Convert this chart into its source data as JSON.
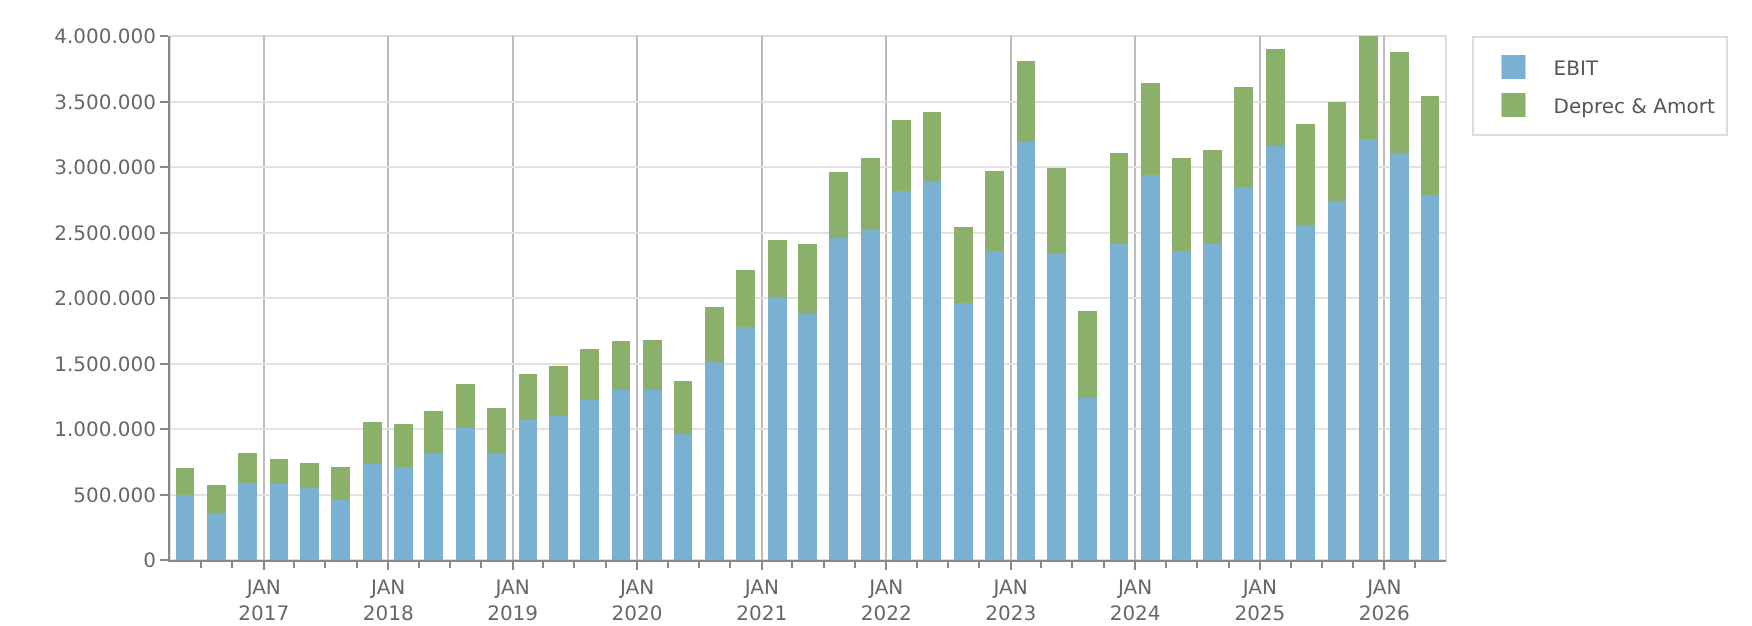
{
  "chart_data": {
    "type": "bar",
    "stacked": true,
    "x": [
      "2016-05-15",
      "2016-08-15",
      "2016-11-15",
      "2017-02-15",
      "2017-05-15",
      "2017-08-15",
      "2017-11-15",
      "2018-02-15",
      "2018-05-15",
      "2018-08-15",
      "2018-11-15",
      "2019-02-15",
      "2019-05-15",
      "2019-08-15",
      "2019-11-15",
      "2020-02-15",
      "2020-05-15",
      "2020-08-15",
      "2020-11-15",
      "2021-02-15",
      "2021-05-15",
      "2021-08-15",
      "2021-11-15",
      "2022-02-15",
      "2022-05-15",
      "2022-08-15",
      "2022-11-15",
      "2023-02-15",
      "2023-05-15",
      "2023-08-15",
      "2023-11-15",
      "2024-02-15",
      "2024-05-15",
      "2024-08-15",
      "2024-11-15",
      "2025-02-15",
      "2025-05-15",
      "2025-08-15",
      "2025-11-15",
      "2026-02-15",
      "2026-05-15"
    ],
    "series": [
      {
        "name": "EBIT",
        "color": "#7ab0d2",
        "values": [
          500000,
          360000,
          590000,
          580000,
          550000,
          460000,
          730000,
          710000,
          820000,
          1010000,
          820000,
          1070000,
          1100000,
          1220000,
          1300000,
          1300000,
          960000,
          1510000,
          1780000,
          2010000,
          1880000,
          2460000,
          2530000,
          2820000,
          2890000,
          1960000,
          2360000,
          3190000,
          2340000,
          1240000,
          2410000,
          2940000,
          2360000,
          2410000,
          2850000,
          3160000,
          2560000,
          2740000,
          3210000,
          3110000,
          2790000
        ]
      },
      {
        "name": "Deprec & Amort",
        "color": "#8ab06a",
        "values": [
          200000,
          210000,
          230000,
          190000,
          190000,
          250000,
          320000,
          330000,
          320000,
          330000,
          340000,
          350000,
          380000,
          390000,
          370000,
          380000,
          410000,
          420000,
          430000,
          430000,
          530000,
          500000,
          540000,
          540000,
          530000,
          580000,
          610000,
          620000,
          650000,
          660000,
          700000,
          700000,
          710000,
          720000,
          760000,
          740000,
          770000,
          760000,
          790000,
          770000,
          750000
        ]
      }
    ],
    "xlim": [
      "2016-04-01",
      "2026-07-01"
    ],
    "xticks": [
      {
        "value": "2016-07-01",
        "label": null
      },
      {
        "value": "2016-10-01",
        "label": null
      },
      {
        "value": "2017-01-01",
        "label": "JAN\n2017"
      },
      {
        "value": "2017-04-01",
        "label": null
      },
      {
        "value": "2017-07-01",
        "label": null
      },
      {
        "value": "2017-10-01",
        "label": null
      },
      {
        "value": "2018-01-01",
        "label": "JAN\n2018"
      },
      {
        "value": "2018-04-01",
        "label": null
      },
      {
        "value": "2018-07-01",
        "label": null
      },
      {
        "value": "2018-10-01",
        "label": null
      },
      {
        "value": "2019-01-01",
        "label": "JAN\n2019"
      },
      {
        "value": "2019-04-01",
        "label": null
      },
      {
        "value": "2019-07-01",
        "label": null
      },
      {
        "value": "2019-10-01",
        "label": null
      },
      {
        "value": "2020-01-01",
        "label": "JAN\n2020"
      },
      {
        "value": "2020-04-01",
        "label": null
      },
      {
        "value": "2020-07-01",
        "label": null
      },
      {
        "value": "2020-10-01",
        "label": null
      },
      {
        "value": "2021-01-01",
        "label": "JAN\n2021"
      },
      {
        "value": "2021-04-01",
        "label": null
      },
      {
        "value": "2021-07-01",
        "label": null
      },
      {
        "value": "2021-10-01",
        "label": null
      },
      {
        "value": "2022-01-01",
        "label": "JAN\n2022"
      },
      {
        "value": "2022-04-01",
        "label": null
      },
      {
        "value": "2022-07-01",
        "label": null
      },
      {
        "value": "2022-10-01",
        "label": null
      },
      {
        "value": "2023-01-01",
        "label": "JAN\n2023"
      },
      {
        "value": "2023-04-01",
        "label": null
      },
      {
        "value": "2023-07-01",
        "label": null
      },
      {
        "value": "2023-10-01",
        "label": null
      },
      {
        "value": "2024-01-01",
        "label": "JAN\n2024"
      },
      {
        "value": "2024-04-01",
        "label": null
      },
      {
        "value": "2024-07-01",
        "label": null
      },
      {
        "value": "2024-10-01",
        "label": null
      },
      {
        "value": "2025-01-01",
        "label": "JAN\n2025"
      },
      {
        "value": "2025-04-01",
        "label": null
      },
      {
        "value": "2025-07-01",
        "label": null
      },
      {
        "value": "2025-10-01",
        "label": null
      },
      {
        "value": "2026-01-01",
        "label": "JAN\n2026"
      },
      {
        "value": "2026-04-01",
        "label": null
      }
    ],
    "ylim": [
      0,
      4000000
    ],
    "yticks": [
      {
        "value": 0,
        "label": "0"
      },
      {
        "value": 500000,
        "label": "500.000"
      },
      {
        "value": 1000000,
        "label": "1.000.000"
      },
      {
        "value": 1500000,
        "label": "1.500.000"
      },
      {
        "value": 2000000,
        "label": "2.000.000"
      },
      {
        "value": 2500000,
        "label": "2.500.000"
      },
      {
        "value": 3000000,
        "label": "3.000.000"
      },
      {
        "value": 3500000,
        "label": "3.500.000"
      },
      {
        "value": 4000000,
        "label": "4.000.000"
      }
    ],
    "grid": true,
    "legend": "top right"
  }
}
